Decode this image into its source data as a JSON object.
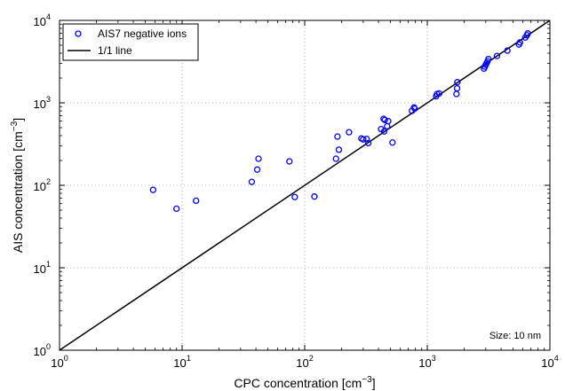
{
  "chart_data": {
    "type": "scatter",
    "x_scale": "log",
    "y_scale": "log",
    "xlim": [
      1,
      10000
    ],
    "ylim": [
      1,
      10000
    ],
    "grid": true,
    "grid_style": "dotted",
    "xlabel": {
      "prefix": "CPC concentration [cm",
      "sup": "−3",
      "suffix": "]"
    },
    "ylabel": {
      "prefix": "AIS concentration [cm",
      "sup": "−3",
      "suffix": "]"
    },
    "x_ticks": [
      {
        "value": 1,
        "base": "10",
        "exp": "0"
      },
      {
        "value": 10,
        "base": "10",
        "exp": "1"
      },
      {
        "value": 100,
        "base": "10",
        "exp": "2"
      },
      {
        "value": 1000,
        "base": "10",
        "exp": "3"
      },
      {
        "value": 10000,
        "base": "10",
        "exp": "4"
      }
    ],
    "y_ticks": [
      {
        "value": 1,
        "base": "10",
        "exp": "0"
      },
      {
        "value": 10,
        "base": "10",
        "exp": "1"
      },
      {
        "value": 100,
        "base": "10",
        "exp": "2"
      },
      {
        "value": 1000,
        "base": "10",
        "exp": "3"
      },
      {
        "value": 10000,
        "base": "10",
        "exp": "4"
      }
    ],
    "legend_position": "top-left",
    "annotation": "Size: 10 nm",
    "colors": {
      "points": "#0000ff",
      "line": "#000000"
    },
    "series": [
      {
        "name": "AIS7 negative ions",
        "kind": "markers",
        "points": [
          [
            5.8,
            88
          ],
          [
            9,
            52
          ],
          [
            13,
            65
          ],
          [
            37,
            110
          ],
          [
            41,
            155
          ],
          [
            42,
            210
          ],
          [
            75,
            195
          ],
          [
            83,
            72
          ],
          [
            120,
            73
          ],
          [
            180,
            210
          ],
          [
            185,
            390
          ],
          [
            190,
            270
          ],
          [
            230,
            440
          ],
          [
            290,
            370
          ],
          [
            300,
            360
          ],
          [
            320,
            365
          ],
          [
            330,
            325
          ],
          [
            420,
            480
          ],
          [
            440,
            640
          ],
          [
            445,
            450
          ],
          [
            450,
            620
          ],
          [
            470,
            520
          ],
          [
            480,
            600
          ],
          [
            520,
            330
          ],
          [
            750,
            800
          ],
          [
            780,
            880
          ],
          [
            790,
            850
          ],
          [
            1180,
            1200
          ],
          [
            1200,
            1280
          ],
          [
            1250,
            1300
          ],
          [
            1730,
            1280
          ],
          [
            1750,
            1500
          ],
          [
            1760,
            1780
          ],
          [
            2900,
            2600
          ],
          [
            2950,
            2750
          ],
          [
            3000,
            2900
          ],
          [
            3050,
            3050
          ],
          [
            3100,
            3200
          ],
          [
            3150,
            3400
          ],
          [
            3700,
            3700
          ],
          [
            4500,
            4300
          ],
          [
            5600,
            5100
          ],
          [
            5700,
            5400
          ],
          [
            6300,
            6200
          ],
          [
            6500,
            6600
          ],
          [
            6600,
            6950
          ]
        ]
      },
      {
        "name": "1/1 line",
        "kind": "line",
        "points": [
          [
            1,
            1
          ],
          [
            10000,
            10000
          ]
        ]
      }
    ]
  }
}
